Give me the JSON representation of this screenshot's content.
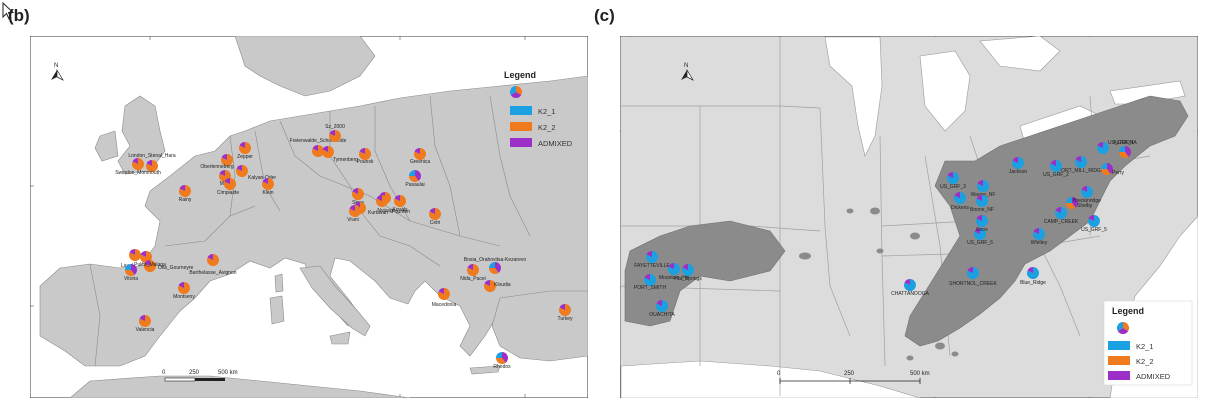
{
  "panels": {
    "b": {
      "label": "(b)"
    },
    "c": {
      "label": "(c)"
    }
  },
  "legend": {
    "title": "Legend",
    "items": [
      {
        "label": "K2_1",
        "color": "#1ba0e2"
      },
      {
        "label": "K2_2",
        "color": "#f07a1e"
      },
      {
        "label": "ADMIXED",
        "color": "#9b2fc8"
      }
    ]
  },
  "scalebar_b": {
    "ticks": [
      "0",
      "250",
      "500 km"
    ]
  },
  "scalebar_c": {
    "ticks": [
      "0",
      "250",
      "500 km"
    ]
  },
  "north": "N",
  "sites_b": [
    {
      "name": "London_Stenal_Hara",
      "type": "orange"
    },
    {
      "name": "Swindon_Monmouth",
      "type": "orange"
    },
    {
      "name": "Oberlenneberg",
      "type": "orange"
    },
    {
      "name": "Zepper",
      "type": "orange"
    },
    {
      "name": "Freienwalde_Schorfheide",
      "type": "orange"
    },
    {
      "name": "Maki",
      "type": "orange"
    },
    {
      "name": "Kalyan-Oder",
      "type": "orange"
    },
    {
      "name": "Sz_2000",
      "type": "orange"
    },
    {
      "name": "Tymenberg",
      "type": "orange"
    },
    {
      "name": "Pounsk",
      "type": "orange"
    },
    {
      "name": "Greenica",
      "type": "orange"
    },
    {
      "name": "Cimpiaide",
      "type": "orange"
    },
    {
      "name": "Klein",
      "type": "orange"
    },
    {
      "name": "Rainy",
      "type": "orange"
    },
    {
      "name": "Pasaulai",
      "type": "mixed"
    },
    {
      "name": "Sena",
      "type": "orange"
    },
    {
      "name": "Kurtavan",
      "type": "orange"
    },
    {
      "name": "Vrani",
      "type": "orange"
    },
    {
      "name": "Nyisag",
      "type": "orange"
    },
    {
      "name": "Pijunten",
      "type": "orange"
    },
    {
      "name": "Kovals",
      "type": "orange"
    },
    {
      "name": "Cetri",
      "type": "orange"
    },
    {
      "name": "Laval",
      "type": "orange"
    },
    {
      "name": "Olla_Gourneyre",
      "type": "orange"
    },
    {
      "name": "Vitoria",
      "type": "mixed"
    },
    {
      "name": "Barthelasse_Avignon",
      "type": "orange"
    },
    {
      "name": "Pulca_Malaga",
      "type": "orange"
    },
    {
      "name": "Montseny",
      "type": "orange"
    },
    {
      "name": "Valencia",
      "type": "orange"
    },
    {
      "name": "Nida_Pacei",
      "type": "orange"
    },
    {
      "name": "Bosia_Orahovitsa-Kezarevo",
      "type": "mixed"
    },
    {
      "name": "Kloudia",
      "type": "orange"
    },
    {
      "name": "Macedonia",
      "type": "orange"
    },
    {
      "name": "Turkey",
      "type": "orange"
    },
    {
      "name": "Rhodos",
      "type": "mixed"
    }
  ],
  "sites_c": [
    {
      "name": "ALTOONA",
      "type": "mixed"
    },
    {
      "name": "US_GRF_1",
      "type": "blue"
    },
    {
      "name": "PORT_MILL_RIDGE",
      "type": "blue"
    },
    {
      "name": "Perry",
      "type": "mixed"
    },
    {
      "name": "US_GRF_2",
      "type": "blue"
    },
    {
      "name": "Wayne_NF",
      "type": "blue"
    },
    {
      "name": "Jackson",
      "type": "blue"
    },
    {
      "name": "US_GRF_3",
      "type": "blue"
    },
    {
      "name": "Dickens",
      "type": "blue"
    },
    {
      "name": "Boone_NF",
      "type": "blue"
    },
    {
      "name": "Shelby",
      "type": "mixed"
    },
    {
      "name": "Breckinridge",
      "type": "blue"
    },
    {
      "name": "CAMP_CREEK",
      "type": "blue"
    },
    {
      "name": "US_GRF_5",
      "type": "blue"
    },
    {
      "name": "Whitley",
      "type": "blue"
    },
    {
      "name": "US_GRF_6",
      "type": "blue"
    },
    {
      "name": "Knox",
      "type": "blue"
    },
    {
      "name": "Blue_Ridge",
      "type": "blue"
    },
    {
      "name": "SHORTNOL_CREEK",
      "type": "blue"
    },
    {
      "name": "CHATTANOOGA",
      "type": "blue"
    },
    {
      "name": "FAYETTEVILLE",
      "type": "blue"
    },
    {
      "name": "Mountain_Hill",
      "type": "blue"
    },
    {
      "name": "PORT_SMITH",
      "type": "blue"
    },
    {
      "name": "Hot_Springs",
      "type": "blue"
    },
    {
      "name": "OUACHITA",
      "type": "blue"
    }
  ]
}
